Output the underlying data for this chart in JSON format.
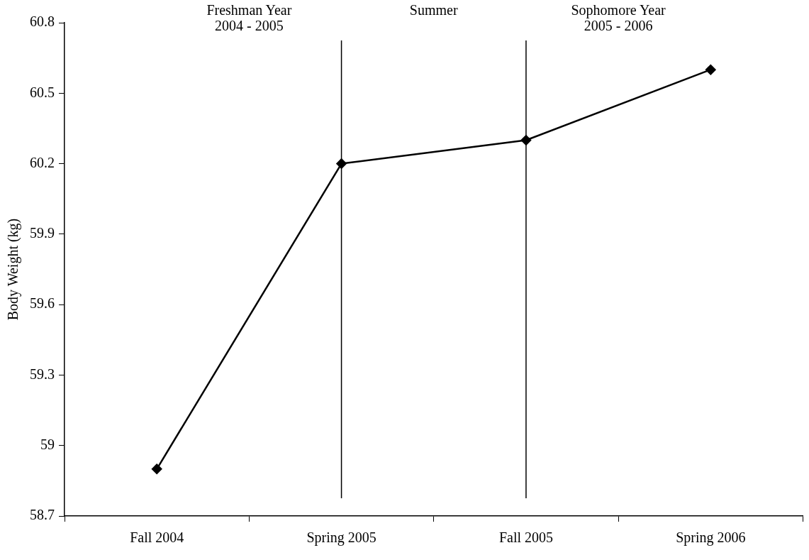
{
  "chart_data": {
    "type": "line",
    "ylabel": "Body Weight (kg)",
    "categories": [
      "Fall 2004",
      "Spring 2005",
      "Fall 2005",
      "Spring 2006"
    ],
    "series": [
      {
        "color": "#000000",
        "values": [
          58.9,
          60.2,
          60.3,
          60.6
        ]
      }
    ],
    "ylim": [
      58.7,
      60.8
    ],
    "yticks": [
      58.7,
      59,
      59.3,
      59.6,
      59.9,
      60.2,
      60.5,
      60.8
    ],
    "ref_lines": [
      {
        "axis": "x",
        "value": "Spring 2005",
        "color": "#000000"
      },
      {
        "axis": "x",
        "value": "Fall 2005",
        "color": "#000000"
      }
    ],
    "annotations": [
      "Freshman Year\n2004 - 2005",
      "Summer",
      "Sophomore Year\n2005 - 2006"
    ],
    "grid": false,
    "legend": false,
    "marker": "diamond",
    "line_style": "solid"
  }
}
